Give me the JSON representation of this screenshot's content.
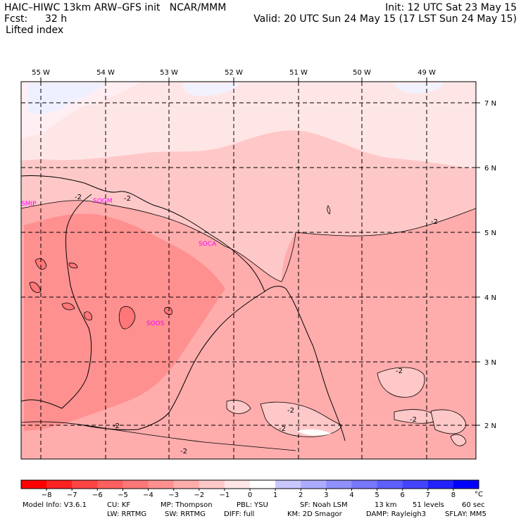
{
  "header": {
    "model_line": "HAIC–HIWC 13km ARW–GFS init   NCAR/MMM",
    "fcst_label": "Fcst:",
    "fcst_value": "32 h",
    "field_name": "Lifted index",
    "init_line": "Init: 12 UTC Sat 23 May 15",
    "valid_line": "Valid: 20 UTC Sun 24 May 15 (17 LST Sun 24 May 15)"
  },
  "map": {
    "lon_labels": [
      "55 W",
      "54 W",
      "53 W",
      "52 W",
      "51 W",
      "50 W",
      "49 W"
    ],
    "lat_labels": [
      "7 N",
      "6 N",
      "5 N",
      "4 N",
      "3 N",
      "2 N"
    ],
    "stations": [
      "SMJP",
      "SOGM",
      "SOCA",
      "SOOS"
    ],
    "contour_label": "-2"
  },
  "colorbar": {
    "ticks": [
      "−8",
      "−7",
      "−6",
      "−5",
      "−4",
      "−3",
      "−2",
      "−1",
      "0",
      "1",
      "2",
      "3",
      "4",
      "5",
      "6",
      "7",
      "8"
    ],
    "unit": "°C",
    "colors": [
      "#ff0000",
      "#ff2222",
      "#ff4444",
      "#ff5f5f",
      "#ff7777",
      "#ff9090",
      "#ffacac",
      "#ffc8c8",
      "#ffe6e6",
      "#ffffff",
      "#c8c8ff",
      "#acacff",
      "#9090ff",
      "#7777ff",
      "#5f5fff",
      "#4444ff",
      "#2222ff",
      "#0000ff"
    ]
  },
  "footer": {
    "row1": [
      "Model Info: V3.6.1",
      "CU: KF",
      "MP: Thompson",
      "PBL: YSU",
      "SF: Noah LSM",
      "13 km",
      "51 levels",
      "60 sec"
    ],
    "row2": [
      "LW: RRTMG",
      "SW: RRTMG",
      "DIFF: full",
      "KM: 2D Smagor",
      "DAMP: Rayleigh3",
      "SFLAY: MM5"
    ]
  }
}
